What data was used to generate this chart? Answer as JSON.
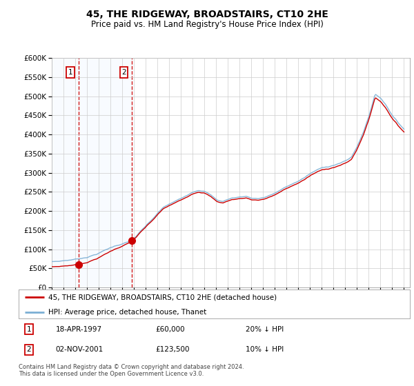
{
  "title": "45, THE RIDGEWAY, BROADSTAIRS, CT10 2HE",
  "subtitle": "Price paid vs. HM Land Registry's House Price Index (HPI)",
  "legend_line1": "45, THE RIDGEWAY, BROADSTAIRS, CT10 2HE (detached house)",
  "legend_line2": "HPI: Average price, detached house, Thanet",
  "footnote": "Contains HM Land Registry data © Crown copyright and database right 2024.\nThis data is licensed under the Open Government Licence v3.0.",
  "transaction1_date": "18-APR-1997",
  "transaction1_price": 60000,
  "transaction1_hpi_text": "20% ↓ HPI",
  "transaction1_year": 1997.29,
  "transaction2_date": "02-NOV-2001",
  "transaction2_price": 123500,
  "transaction2_hpi_text": "10% ↓ HPI",
  "transaction2_year": 2001.84,
  "hpi_color": "#7bafd4",
  "price_color": "#cc0000",
  "vline_color": "#cc0000",
  "shading_color": "#ddeeff",
  "background_color": "#ffffff",
  "grid_color": "#cccccc",
  "ylim": [
    0,
    600000
  ],
  "yticks": [
    0,
    50000,
    100000,
    150000,
    200000,
    250000,
    300000,
    350000,
    400000,
    450000,
    500000,
    550000,
    600000
  ],
  "xlim_start": 1995.0,
  "xlim_end": 2025.5
}
